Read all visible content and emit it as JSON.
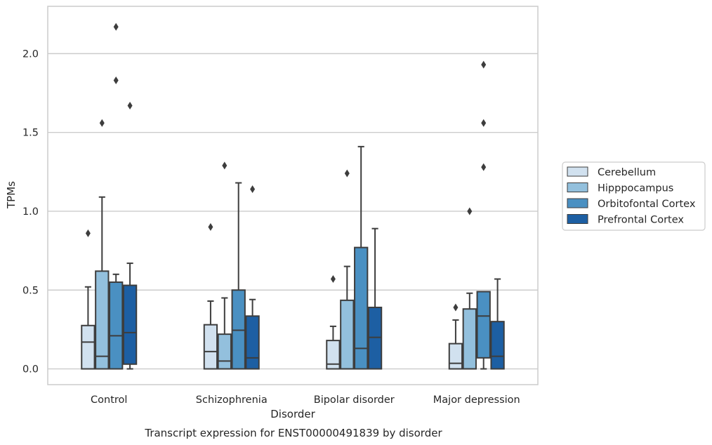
{
  "chart_data": {
    "type": "boxplot",
    "title": "",
    "xlabel": "Disorder",
    "ylabel": "TPMs",
    "caption": "Transcript expression for ENST00000491839 by disorder",
    "ylim": [
      -0.1,
      2.3
    ],
    "yticks": [
      0.0,
      0.5,
      1.0,
      1.5,
      2.0
    ],
    "ytick_labels": [
      "0.0",
      "0.5",
      "1.0",
      "1.5",
      "2.0"
    ],
    "grid": "horizontal",
    "legend_position": "right",
    "categories": [
      "Control",
      "Schizophrenia",
      "Bipolar disorder",
      "Major depression"
    ],
    "series": [
      {
        "name": "Cerebellum",
        "color": "#d1e1ef",
        "boxes": [
          {
            "whislo": 0.0,
            "q1": 0.0,
            "med": 0.17,
            "q3": 0.275,
            "whishi": 0.52,
            "fliers": [
              0.86
            ]
          },
          {
            "whislo": 0.0,
            "q1": 0.0,
            "med": 0.11,
            "q3": 0.28,
            "whishi": 0.43,
            "fliers": [
              0.9
            ]
          },
          {
            "whislo": 0.0,
            "q1": 0.0,
            "med": 0.03,
            "q3": 0.18,
            "whishi": 0.27,
            "fliers": [
              0.57
            ]
          },
          {
            "whislo": 0.0,
            "q1": 0.0,
            "med": 0.035,
            "q3": 0.16,
            "whishi": 0.31,
            "fliers": [
              0.39
            ]
          }
        ]
      },
      {
        "name": "Hipppocampus",
        "color": "#93c0dd",
        "boxes": [
          {
            "whislo": 0.0,
            "q1": 0.0,
            "med": 0.08,
            "q3": 0.62,
            "whishi": 1.09,
            "fliers": [
              1.56
            ]
          },
          {
            "whislo": 0.0,
            "q1": 0.0,
            "med": 0.05,
            "q3": 0.22,
            "whishi": 0.45,
            "fliers": [
              1.29
            ]
          },
          {
            "whislo": 0.0,
            "q1": 0.0,
            "med": 0.0,
            "q3": 0.435,
            "whishi": 0.65,
            "fliers": [
              1.24
            ]
          },
          {
            "whislo": 0.0,
            "q1": 0.0,
            "med": 0.0,
            "q3": 0.38,
            "whishi": 0.48,
            "fliers": [
              1.0
            ]
          }
        ]
      },
      {
        "name": "Orbitofontal Cortex",
        "color": "#4a90c2",
        "boxes": [
          {
            "whislo": 0.0,
            "q1": 0.0,
            "med": 0.21,
            "q3": 0.55,
            "whishi": 0.6,
            "fliers": [
              1.83,
              2.17
            ]
          },
          {
            "whislo": 0.0,
            "q1": 0.0,
            "med": 0.245,
            "q3": 0.5,
            "whishi": 1.18,
            "fliers": []
          },
          {
            "whislo": 0.0,
            "q1": 0.0,
            "med": 0.13,
            "q3": 0.77,
            "whishi": 1.41,
            "fliers": []
          },
          {
            "whislo": 0.0,
            "q1": 0.07,
            "med": 0.335,
            "q3": 0.49,
            "whishi": 0.49,
            "fliers": [
              1.28,
              1.56,
              1.93
            ]
          }
        ]
      },
      {
        "name": "Prefrontal Cortex",
        "color": "#1d5fa3",
        "boxes": [
          {
            "whislo": 0.0,
            "q1": 0.03,
            "med": 0.23,
            "q3": 0.53,
            "whishi": 0.67,
            "fliers": [
              1.67
            ]
          },
          {
            "whislo": 0.0,
            "q1": 0.0,
            "med": 0.07,
            "q3": 0.335,
            "whishi": 0.44,
            "fliers": [
              1.14
            ]
          },
          {
            "whislo": 0.0,
            "q1": 0.0,
            "med": 0.2,
            "q3": 0.39,
            "whishi": 0.89,
            "fliers": []
          },
          {
            "whislo": 0.0,
            "q1": 0.0,
            "med": 0.08,
            "q3": 0.3,
            "whishi": 0.57,
            "fliers": []
          }
        ]
      }
    ]
  }
}
